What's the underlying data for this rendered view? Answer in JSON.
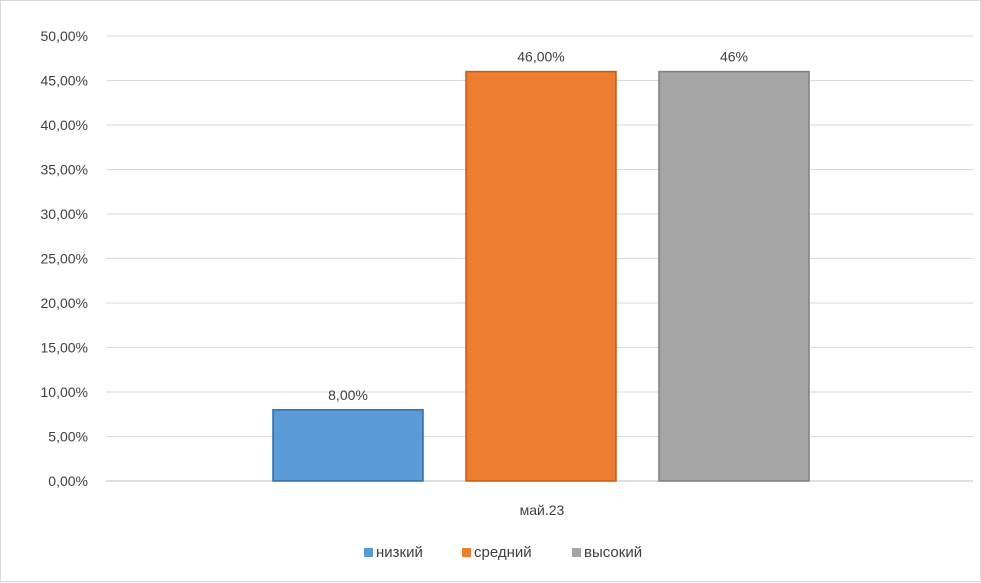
{
  "chart_data": {
    "type": "bar",
    "categories": [
      "май.23"
    ],
    "series": [
      {
        "name": "низкий",
        "values": [
          0.08
        ],
        "label": "8,00%",
        "color": "#5b9bd5",
        "edge": "#2e6da4"
      },
      {
        "name": "средний",
        "values": [
          0.46
        ],
        "label": "46,00%",
        "color": "#ed7d31",
        "edge": "#c55a11"
      },
      {
        "name": "высокий",
        "values": [
          0.46
        ],
        "label": "46%",
        "color": "#a5a5a5",
        "edge": "#7f7f7f"
      }
    ],
    "yticks": [
      "0,00%",
      "5,00%",
      "10,00%",
      "15,00%",
      "20,00%",
      "25,00%",
      "30,00%",
      "35,00%",
      "40,00%",
      "45,00%",
      "50,00%"
    ],
    "ylim": [
      0,
      0.5
    ],
    "grid": true,
    "legend": "bottom",
    "title": "",
    "xlabel": "",
    "ylabel": ""
  }
}
